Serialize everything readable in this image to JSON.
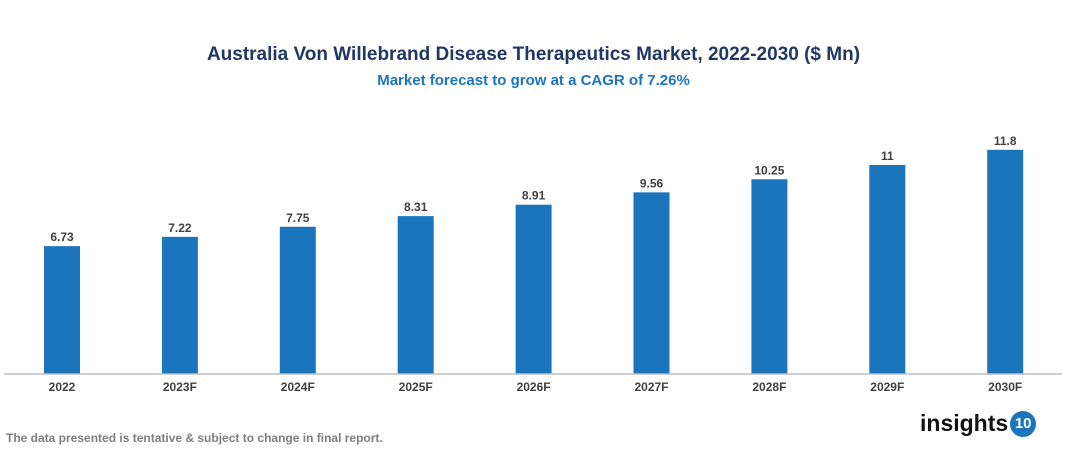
{
  "chart_data": {
    "type": "bar",
    "title": "Australia Von Willebrand Disease Therapeutics Market, 2022-2030 ($ Mn)",
    "subtitle": "Market forecast to grow at a CAGR of 7.26%",
    "categories": [
      "2022",
      "2023F",
      "2024F",
      "2025F",
      "2026F",
      "2027F",
      "2028F",
      "2029F",
      "2030F"
    ],
    "values": [
      6.73,
      7.22,
      7.75,
      8.31,
      8.91,
      9.56,
      10.25,
      11,
      11.8
    ],
    "labels": [
      "6.73",
      "7.22",
      "7.75",
      "8.31",
      "8.91",
      "9.56",
      "10.25",
      "11",
      "11.8"
    ],
    "xlabel": "",
    "ylabel": "",
    "ylim": [
      0,
      13
    ],
    "grid": false,
    "bar_color": "#1a75bc"
  },
  "footer": {
    "note": "The data presented is tentative & subject to change in final report.",
    "logo_text": "insights",
    "logo_badge": "10"
  }
}
